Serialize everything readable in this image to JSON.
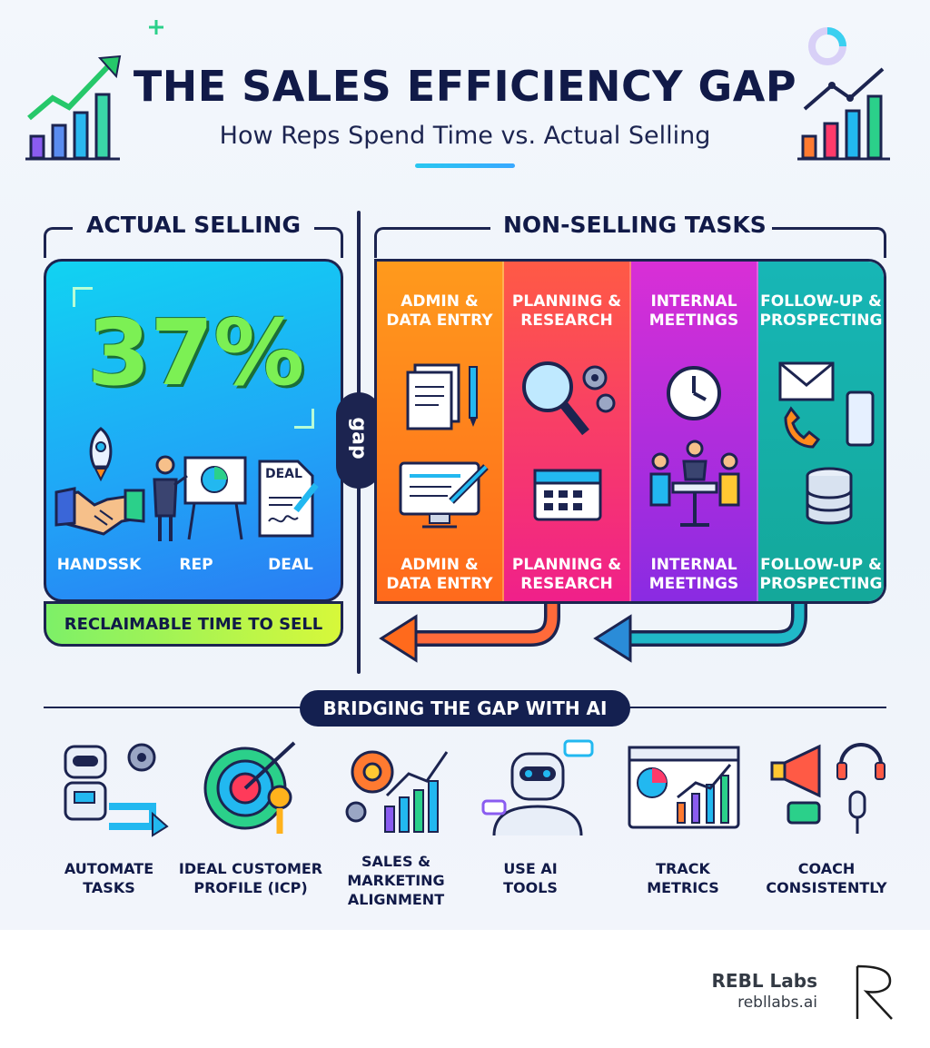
{
  "header": {
    "title": "THE SALES EFFICIENCY GAP",
    "subtitle": "How Reps Spend Time vs. Actual Selling"
  },
  "actual_selling": {
    "heading": "ACTUAL SELLING",
    "percentage": "37%",
    "labels": [
      "HANDSSK",
      "REP",
      "DEAL"
    ],
    "deal_doc_text": "DEAL",
    "reclaimable": "RECLAIMABLE TIME TO SELL"
  },
  "gap_label": "gap",
  "non_selling": {
    "heading": "NON-SELLING TASKS",
    "tasks": [
      {
        "top_line1": "ADMIN &",
        "top_line2": "DATA ENTRY",
        "bottom_line1": "ADMIN &",
        "bottom_line2": "DATA ENTRY",
        "icon": "document-computer-icon"
      },
      {
        "top_line1": "PLANNING &",
        "top_line2": "RESEARCH",
        "bottom_line1": "PLANNING &",
        "bottom_line2": "RESEARCH",
        "icon": "magnifier-calendar-icon"
      },
      {
        "top_line1": "INTERNAL",
        "top_line2": "MEETINGS",
        "bottom_line1": "INTERNAL",
        "bottom_line2": "MEETINGS",
        "icon": "clock-meeting-icon"
      },
      {
        "top_line1": "FOLLOW-UP &",
        "top_line2": "PROSPECTING",
        "bottom_line1": "FOLLOW-UP &",
        "bottom_line2": "PROSPECTING",
        "icon": "mail-phone-database-icon"
      }
    ]
  },
  "bridging": {
    "heading": "BRIDGING THE GAP WITH AI",
    "items": [
      {
        "line1": "AUTOMATE",
        "line2": "TASKS",
        "line3": "",
        "icon": "robot-icon"
      },
      {
        "line1": "IDEAL CUSTOMER",
        "line2": "PROFILE (ICP)",
        "line3": "",
        "icon": "target-key-icon"
      },
      {
        "line1": "SALES &",
        "line2": "MARKETING",
        "line3": "ALIGNMENT",
        "icon": "gear-chart-icon"
      },
      {
        "line1": "USE AI",
        "line2": "TOOLS",
        "line3": "",
        "icon": "ai-robot-face-icon"
      },
      {
        "line1": "TRACK",
        "line2": "METRICS",
        "line3": "",
        "icon": "dashboard-icon"
      },
      {
        "line1": "COACH",
        "line2": "CONSISTENTLY",
        "line3": "",
        "icon": "megaphone-headset-icon"
      }
    ]
  },
  "footer": {
    "brand": "REBL Labs",
    "url": "rebllabs.ai"
  },
  "colors": {
    "navy": "#1c2450",
    "selling_top": "#11d3f2",
    "selling_bottom": "#2a7cf4",
    "percent_green": "#7cf054",
    "admin": "#ff8a1c",
    "planning": "#f0358a",
    "meetings": "#b52fe0",
    "followup": "#17b0a8"
  }
}
